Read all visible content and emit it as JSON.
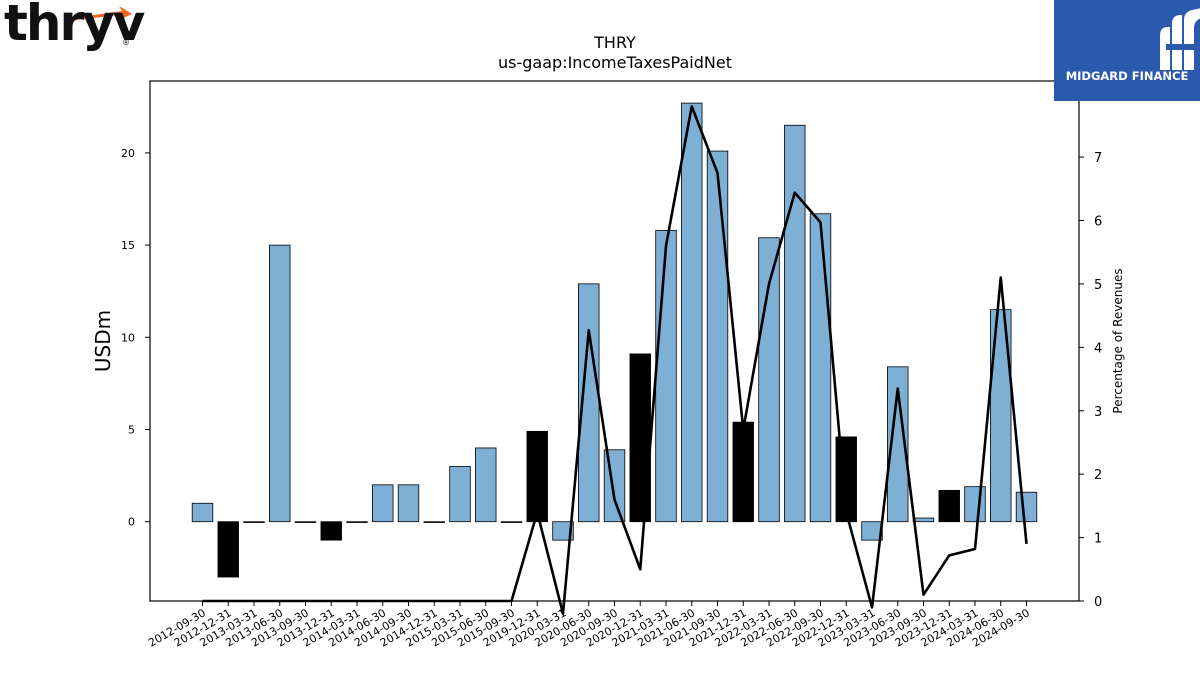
{
  "header": {
    "left_logo_text": "thryv",
    "left_logo_mark": "®",
    "right_logo_text": "MIDGARD FINANCE",
    "right_logo_icon": "midgard-m-icon",
    "brand_blue": "#2b5aad",
    "brand_orange": "#f26722"
  },
  "chart_data": {
    "type": "bar",
    "title": "THRY",
    "subtitle": "us-gaap:IncomeTaxesPaidNet",
    "ylabel": "USDm",
    "y2label": "Percentage of Revenues",
    "ylim": [
      -4.3,
      23.9
    ],
    "y2lim": [
      0,
      8.2
    ],
    "yticks": [
      0,
      5,
      10,
      15,
      20
    ],
    "y2ticks": [
      0,
      1,
      2,
      3,
      4,
      5,
      6,
      7
    ],
    "bar_color": "#7eb0d5",
    "highlight_color": "#000000",
    "line_color": "#000000",
    "categories": [
      "2012-09-30",
      "2012-12-31",
      "2013-03-31",
      "2013-06-30",
      "2013-09-30",
      "2013-12-31",
      "2014-03-31",
      "2014-06-30",
      "2014-09-30",
      "2014-12-31",
      "2015-03-31",
      "2015-06-30",
      "2015-09-30",
      "2019-12-31",
      "2020-03-31",
      "2020-06-30",
      "2020-09-30",
      "2020-12-31",
      "2021-03-31",
      "2021-06-30",
      "2021-09-30",
      "2021-12-31",
      "2022-03-31",
      "2022-06-30",
      "2022-09-30",
      "2022-12-31",
      "2023-03-31",
      "2023-06-30",
      "2023-09-30",
      "2023-12-31",
      "2024-03-31",
      "2024-06-30",
      "2024-09-30"
    ],
    "values": [
      1.0,
      -3.0,
      0.0,
      15.0,
      0.0,
      -1.0,
      0.0,
      2.0,
      2.0,
      0.0,
      3.0,
      4.0,
      0.0,
      4.9,
      -1.0,
      12.9,
      3.9,
      9.1,
      15.8,
      22.7,
      20.1,
      5.4,
      15.4,
      21.5,
      16.7,
      4.6,
      -1.0,
      8.4,
      0.2,
      1.7,
      1.9,
      11.5,
      1.6
    ],
    "highlighted": [
      false,
      true,
      false,
      false,
      false,
      true,
      false,
      false,
      false,
      false,
      false,
      false,
      false,
      true,
      false,
      false,
      false,
      true,
      false,
      false,
      false,
      true,
      false,
      false,
      false,
      true,
      false,
      false,
      false,
      true,
      false,
      false,
      false
    ],
    "pct_of_revenues": [
      0,
      0,
      0,
      0,
      0,
      0,
      0,
      0,
      0,
      0,
      0,
      0,
      0,
      1.4,
      -0.2,
      4.27,
      1.6,
      0.5,
      5.6,
      7.8,
      6.75,
      2.7,
      5.0,
      6.44,
      5.97,
      1.4,
      -0.1,
      3.35,
      0.1,
      0.72,
      0.82,
      5.1,
      0.9
    ]
  }
}
